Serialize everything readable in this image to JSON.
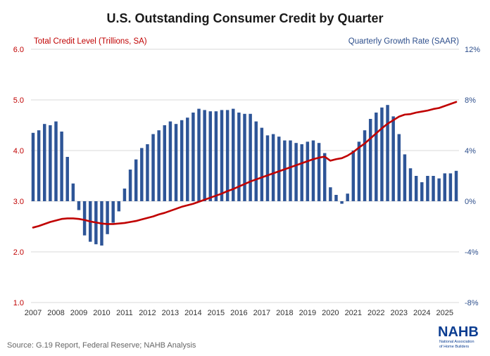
{
  "title": "U.S. Outstanding Consumer Credit by Quarter",
  "source": "Source: G.19 Report, Federal Reserve; NAHB Analysis",
  "logo": {
    "name": "NAHB",
    "line1": "National Association",
    "line2": "of Home Builders"
  },
  "colors": {
    "line": "#c00000",
    "bars": "#2e5597",
    "grid": "#d9d9d9",
    "logo": "#0b3d91"
  },
  "chart_data": {
    "type": "bar",
    "title": "U.S. Outstanding Consumer Credit by Quarter",
    "left_axis": {
      "label": "Total Credit Level (Trillions, SA)",
      "range": [
        1.0,
        6.0
      ],
      "ticks": [
        "1.0",
        "2.0",
        "3.0",
        "4.0",
        "5.0",
        "6.0"
      ]
    },
    "right_axis": {
      "label": "Quarterly Growth Rate (SAAR)",
      "range": [
        -8,
        12
      ],
      "ticks": [
        "-8%",
        "-4%",
        "0%",
        "4%",
        "8%",
        "12%"
      ]
    },
    "x_axis": {
      "tick_labels": [
        "2007",
        "2008",
        "2009",
        "2010",
        "2011",
        "2012",
        "2013",
        "2014",
        "2015",
        "2016",
        "2017",
        "2018",
        "2019",
        "2020",
        "2021",
        "2022",
        "2023",
        "2024",
        "2025"
      ]
    },
    "grid": true,
    "series": [
      {
        "name": "Quarterly Growth Rate (SAAR)",
        "type": "bar",
        "axis": "right",
        "values": [
          5.4,
          5.6,
          6.1,
          6.0,
          6.3,
          5.5,
          3.5,
          1.4,
          -0.7,
          -2.7,
          -3.2,
          -3.4,
          -3.5,
          -2.6,
          -1.7,
          -0.8,
          1.0,
          2.5,
          3.3,
          4.2,
          4.5,
          5.3,
          5.6,
          6.0,
          6.3,
          6.1,
          6.4,
          6.6,
          7.0,
          7.3,
          7.2,
          7.1,
          7.1,
          7.2,
          7.2,
          7.3,
          7.0,
          6.9,
          6.9,
          6.3,
          5.8,
          5.2,
          5.3,
          5.1,
          4.8,
          4.8,
          4.6,
          4.5,
          4.7,
          4.8,
          4.6,
          3.8,
          1.1,
          0.5,
          -0.2,
          0.6,
          4.0,
          4.7,
          5.6,
          6.5,
          7.0,
          7.4,
          7.6,
          6.7,
          5.3,
          3.7,
          2.6,
          2.0,
          1.5,
          2.0,
          2.0,
          1.8,
          2.2,
          2.2,
          2.4
        ]
      },
      {
        "name": "Total Credit Level (Trillions, SA)",
        "type": "line",
        "axis": "left",
        "values": [
          2.48,
          2.51,
          2.55,
          2.59,
          2.62,
          2.65,
          2.66,
          2.66,
          2.65,
          2.63,
          2.6,
          2.58,
          2.56,
          2.55,
          2.55,
          2.56,
          2.57,
          2.59,
          2.61,
          2.64,
          2.67,
          2.7,
          2.74,
          2.77,
          2.81,
          2.85,
          2.89,
          2.92,
          2.95,
          2.99,
          3.03,
          3.07,
          3.11,
          3.15,
          3.2,
          3.24,
          3.29,
          3.34,
          3.39,
          3.43,
          3.47,
          3.51,
          3.55,
          3.59,
          3.63,
          3.67,
          3.71,
          3.75,
          3.79,
          3.83,
          3.86,
          3.88,
          3.8,
          3.83,
          3.85,
          3.9,
          3.97,
          4.06,
          4.14,
          4.24,
          4.34,
          4.44,
          4.53,
          4.6,
          4.67,
          4.71,
          4.72,
          4.75,
          4.77,
          4.79,
          4.82,
          4.84,
          4.88,
          4.92,
          4.96
        ]
      }
    ]
  }
}
